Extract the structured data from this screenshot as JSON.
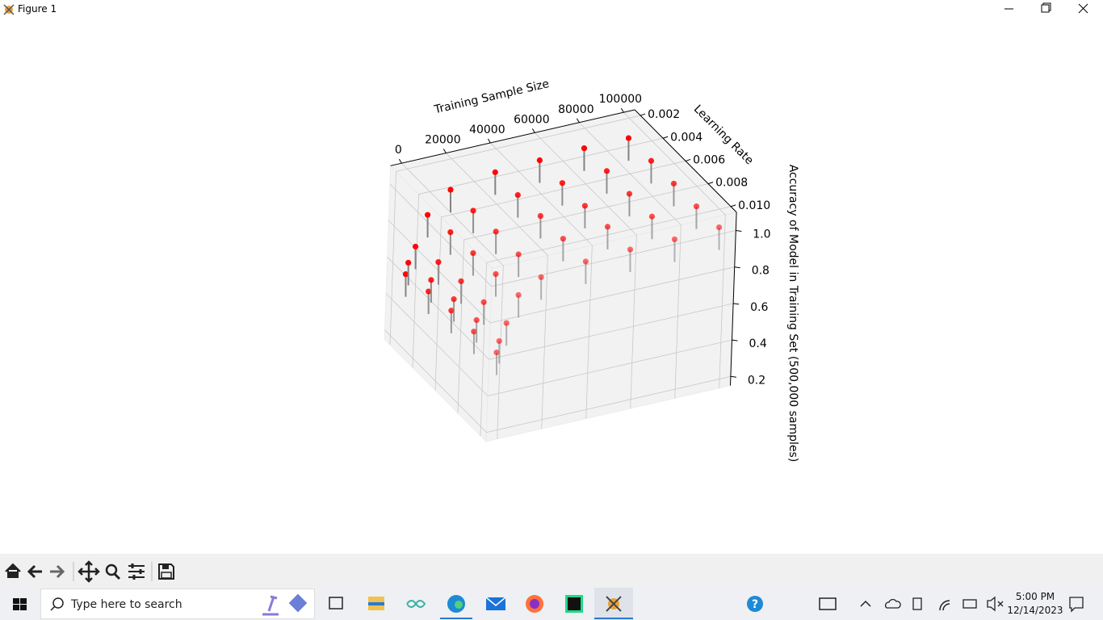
{
  "window": {
    "title": "Figure 1"
  },
  "chart_data": {
    "type": "scatter3d",
    "xlabel": "Training Sample Size",
    "ylabel": "Learning Rate",
    "zlabel": "Accuracy of Model in Training Set (500,000 samples)",
    "color": "#ff0000",
    "stem_color": "#808080",
    "grid": true,
    "x": [
      1000,
      2000,
      5000,
      10000,
      20000,
      40000,
      60000,
      80000,
      100000,
      1000,
      2000,
      5000,
      10000,
      20000,
      40000,
      60000,
      80000,
      100000,
      1000,
      2000,
      5000,
      10000,
      20000,
      40000,
      60000,
      80000,
      100000,
      1000,
      2000,
      5000,
      10000,
      20000,
      40000,
      60000,
      80000,
      100000,
      1000,
      2000,
      5000,
      10000,
      20000,
      40000,
      60000,
      80000,
      100000
    ],
    "y": [
      0.002,
      0.002,
      0.002,
      0.002,
      0.002,
      0.002,
      0.002,
      0.002,
      0.002,
      0.004,
      0.004,
      0.004,
      0.004,
      0.004,
      0.004,
      0.004,
      0.004,
      0.004,
      0.006,
      0.006,
      0.006,
      0.006,
      0.006,
      0.006,
      0.006,
      0.006,
      0.006,
      0.008,
      0.008,
      0.008,
      0.008,
      0.008,
      0.008,
      0.008,
      0.008,
      0.008,
      0.01,
      0.01,
      0.01,
      0.01,
      0.01,
      0.01,
      0.01,
      0.01,
      0.01
    ],
    "z": [
      0.52,
      0.58,
      0.66,
      0.82,
      0.93,
      0.97,
      0.98,
      0.99,
      0.99,
      0.55,
      0.61,
      0.7,
      0.85,
      0.94,
      0.97,
      0.98,
      0.99,
      0.99,
      0.57,
      0.63,
      0.72,
      0.86,
      0.95,
      0.98,
      0.98,
      0.99,
      0.99,
      0.58,
      0.64,
      0.73,
      0.87,
      0.95,
      0.98,
      0.99,
      0.99,
      0.99,
      0.59,
      0.65,
      0.74,
      0.88,
      0.95,
      0.98,
      0.99,
      0.99,
      1
    ],
    "xlim": [
      -5000,
      105000
    ],
    "ylim": [
      0.0015,
      0.0105
    ],
    "zlim": [
      0.15,
      1.1
    ],
    "xticks": [
      0,
      20000,
      40000,
      60000,
      80000,
      100000
    ],
    "yticks": [
      0.002,
      0.004,
      0.006,
      0.008,
      {
        "value": 0.01,
        "label": "0.010"
      }
    ],
    "zticks": [
      0.2,
      0.4,
      0.6,
      0.8,
      {
        "value": 1,
        "label": "1.0"
      }
    ]
  },
  "taskbar": {
    "search": "Type here to search",
    "time": "5:00 PM",
    "date": "12/14/2023"
  }
}
